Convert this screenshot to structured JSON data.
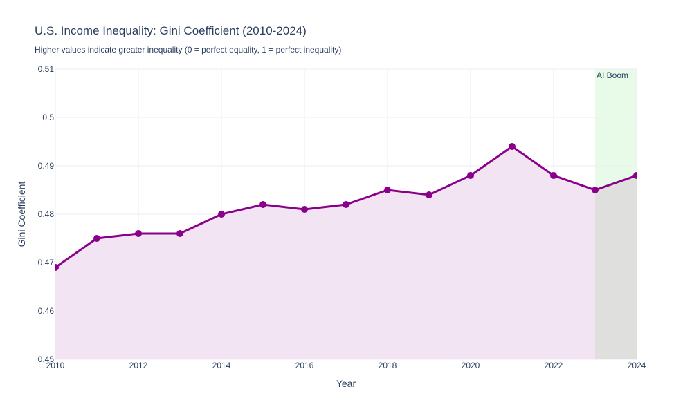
{
  "chart_data": {
    "type": "area",
    "title": "U.S. Income Inequality: Gini Coefficient (2010-2024)",
    "subtitle": "Higher values indicate greater inequality (0 = perfect equality, 1 = perfect inequality)",
    "xlabel": "Year",
    "ylabel": "Gini Coefficient",
    "x": [
      2010,
      2011,
      2012,
      2013,
      2014,
      2015,
      2016,
      2017,
      2018,
      2019,
      2020,
      2021,
      2022,
      2023,
      2024
    ],
    "values": [
      0.469,
      0.475,
      0.476,
      0.476,
      0.48,
      0.482,
      0.481,
      0.482,
      0.485,
      0.484,
      0.488,
      0.494,
      0.488,
      0.485,
      0.488
    ],
    "xlim": [
      2010,
      2024
    ],
    "ylim": [
      0.45,
      0.51
    ],
    "xticks": [
      "2010",
      "2012",
      "2014",
      "2016",
      "2018",
      "2020",
      "2022",
      "2024"
    ],
    "yticks": [
      "0.45",
      "0.46",
      "0.47",
      "0.48",
      "0.49",
      "0.5",
      "0.51"
    ],
    "grid": true,
    "line_color": "#8b008b",
    "fill_color": "#f2e4f2",
    "annotation": {
      "label": "AI Boom",
      "x0": 2023,
      "x1": 2024,
      "color": "#e8fbe8"
    }
  }
}
